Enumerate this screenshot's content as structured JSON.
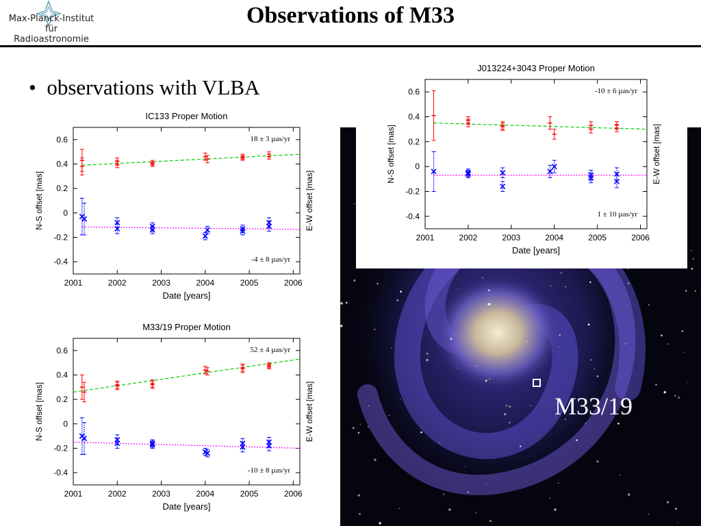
{
  "header": {
    "logo_lines": [
      "Max-Planck-Institut",
      "für",
      "Radioastronomie"
    ],
    "title": "Observations of M33"
  },
  "bullet": "observations with VLBA",
  "galaxy": {
    "label": "M33/19",
    "colors": {
      "sky": "#05050f",
      "arm": "#5a4ec8",
      "core": "#d8c9a0",
      "marker": "#ffffff"
    }
  },
  "colors": {
    "ns": "#ff0000",
    "ew": "#0000ff",
    "ns_fit": "#00cc00",
    "ew_fit": "#ff00ff"
  },
  "chart_data": [
    {
      "id": "ic133",
      "type": "scatter",
      "title": "IC133 Proper Motion",
      "xlabel": "Date [years]",
      "ylabel": "N-S offset [mas]",
      "ylabel2": "E-W offset [mas]",
      "xlim": [
        2001,
        2006.15
      ],
      "ylim": [
        -0.5,
        0.7
      ],
      "xticks": [
        "2001",
        "2002",
        "2003",
        "2004",
        "2005",
        "2006"
      ],
      "yticks": [
        "0.6",
        "0.4",
        "0.2",
        "0",
        "-0.2",
        "-0.4"
      ],
      "ns_rate": "18 ± 3 µas/yr",
      "ew_rate": "-4 ± 8 µas/yr",
      "series": [
        {
          "name": "N-S",
          "points": [
            [
              2001.2,
              0.43,
              0.09
            ],
            [
              2001.2,
              0.38,
              0.07
            ],
            [
              2002.0,
              0.42,
              0.03
            ],
            [
              2002.0,
              0.4,
              0.03
            ],
            [
              2002.8,
              0.41,
              0.02
            ],
            [
              2002.8,
              0.4,
              0.02
            ],
            [
              2004.0,
              0.46,
              0.03
            ],
            [
              2004.05,
              0.44,
              0.03
            ],
            [
              2004.85,
              0.46,
              0.02
            ],
            [
              2004.85,
              0.45,
              0.02
            ],
            [
              2005.45,
              0.48,
              0.02
            ],
            [
              2005.45,
              0.46,
              0.02
            ]
          ],
          "fit": [
            [
              2001.2,
              0.39
            ],
            [
              2006.15,
              0.48
            ]
          ]
        },
        {
          "name": "E-W",
          "points": [
            [
              2001.2,
              -0.03,
              0.15
            ],
            [
              2001.25,
              -0.05,
              0.13
            ],
            [
              2002.0,
              -0.08,
              0.04
            ],
            [
              2002.0,
              -0.13,
              0.04
            ],
            [
              2002.8,
              -0.11,
              0.03
            ],
            [
              2002.8,
              -0.14,
              0.03
            ],
            [
              2004.0,
              -0.19,
              0.03
            ],
            [
              2004.05,
              -0.14,
              0.03
            ],
            [
              2004.85,
              -0.13,
              0.03
            ],
            [
              2004.85,
              -0.15,
              0.03
            ],
            [
              2005.45,
              -0.08,
              0.04
            ],
            [
              2005.45,
              -0.11,
              0.04
            ]
          ],
          "fit": [
            [
              2001.2,
              -0.115
            ],
            [
              2006.15,
              -0.135
            ]
          ]
        }
      ]
    },
    {
      "id": "m33_19",
      "type": "scatter",
      "title": "M33/19 Proper Motion",
      "xlabel": "Date [years]",
      "ylabel": "N-S offset [mas]",
      "ylabel2": "E-W offset [mas]",
      "xlim": [
        2001,
        2006.15
      ],
      "ylim": [
        -0.5,
        0.7
      ],
      "xticks": [
        "2001",
        "2002",
        "2003",
        "2004",
        "2005",
        "2006"
      ],
      "yticks": [
        "0.6",
        "0.4",
        "0.2",
        "0",
        "-0.2",
        "-0.4"
      ],
      "ns_rate": "52 ± 4 µas/yr",
      "ew_rate": "-10 ± 8 µas/yr",
      "series": [
        {
          "name": "N-S",
          "points": [
            [
              2001.2,
              0.3,
              0.1
            ],
            [
              2001.25,
              0.26,
              0.08
            ],
            [
              2002.0,
              0.32,
              0.03
            ],
            [
              2002.0,
              0.31,
              0.03
            ],
            [
              2002.8,
              0.33,
              0.03
            ],
            [
              2002.8,
              0.32,
              0.03
            ],
            [
              2004.0,
              0.44,
              0.03
            ],
            [
              2004.05,
              0.43,
              0.03
            ],
            [
              2004.85,
              0.46,
              0.03
            ],
            [
              2004.85,
              0.45,
              0.03
            ],
            [
              2005.45,
              0.48,
              0.02
            ],
            [
              2005.45,
              0.47,
              0.02
            ]
          ],
          "fit": [
            [
              2001.0,
              0.26
            ],
            [
              2006.15,
              0.53
            ]
          ]
        },
        {
          "name": "E-W",
          "points": [
            [
              2001.2,
              -0.1,
              0.15
            ],
            [
              2001.25,
              -0.12,
              0.13
            ],
            [
              2002.0,
              -0.13,
              0.04
            ],
            [
              2002.0,
              -0.16,
              0.04
            ],
            [
              2002.8,
              -0.16,
              0.03
            ],
            [
              2002.8,
              -0.17,
              0.03
            ],
            [
              2004.0,
              -0.23,
              0.03
            ],
            [
              2004.05,
              -0.24,
              0.03
            ],
            [
              2004.85,
              -0.16,
              0.04
            ],
            [
              2004.85,
              -0.19,
              0.04
            ],
            [
              2005.45,
              -0.15,
              0.04
            ],
            [
              2005.45,
              -0.18,
              0.04
            ]
          ],
          "fit": [
            [
              2001.0,
              -0.15
            ],
            [
              2006.15,
              -0.2
            ]
          ]
        }
      ]
    },
    {
      "id": "j013224",
      "type": "scatter",
      "title": "J013224+3043 Proper Motion",
      "xlabel": "Date [years]",
      "ylabel": "N-S offset [mas]",
      "ylabel2": "E-W offset [mas]",
      "xlim": [
        2001,
        2006.15
      ],
      "ylim": [
        -0.5,
        0.7
      ],
      "xticks": [
        "2001",
        "2002",
        "2003",
        "2004",
        "2005",
        "2006"
      ],
      "yticks": [
        "0.6",
        "0.4",
        "0.2",
        "0",
        "-0.2",
        "-0.4"
      ],
      "ns_rate": "-10 ± 6 µas/yr",
      "ew_rate": "1 ± 10 µas/yr",
      "series": [
        {
          "name": "N-S",
          "points": [
            [
              2001.2,
              0.41,
              0.2
            ],
            [
              2002.0,
              0.37,
              0.03
            ],
            [
              2002.0,
              0.35,
              0.03
            ],
            [
              2002.8,
              0.33,
              0.03
            ],
            [
              2002.8,
              0.32,
              0.03
            ],
            [
              2003.9,
              0.35,
              0.05
            ],
            [
              2004.0,
              0.26,
              0.04
            ],
            [
              2004.85,
              0.33,
              0.03
            ],
            [
              2004.85,
              0.3,
              0.03
            ],
            [
              2005.45,
              0.33,
              0.03
            ],
            [
              2005.45,
              0.31,
              0.03
            ]
          ],
          "fit": [
            [
              2001.2,
              0.35
            ],
            [
              2006.15,
              0.3
            ]
          ]
        },
        {
          "name": "E-W",
          "points": [
            [
              2001.2,
              -0.04,
              0.16
            ],
            [
              2002.0,
              -0.05,
              0.03
            ],
            [
              2002.0,
              -0.06,
              0.03
            ],
            [
              2002.8,
              -0.05,
              0.04
            ],
            [
              2002.8,
              -0.16,
              0.04
            ],
            [
              2003.9,
              -0.04,
              0.05
            ],
            [
              2004.0,
              0.0,
              0.05
            ],
            [
              2004.85,
              -0.07,
              0.04
            ],
            [
              2004.85,
              -0.09,
              0.04
            ],
            [
              2005.45,
              -0.06,
              0.05
            ],
            [
              2005.45,
              -0.12,
              0.05
            ]
          ],
          "fit": [
            [
              2001.2,
              -0.07
            ],
            [
              2006.15,
              -0.07
            ]
          ]
        }
      ]
    }
  ]
}
